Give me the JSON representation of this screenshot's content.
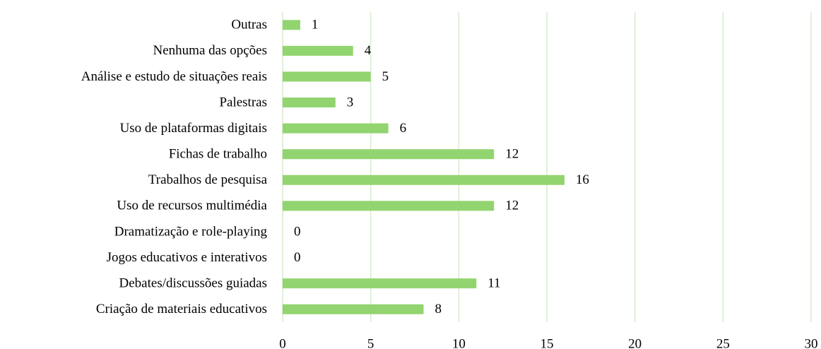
{
  "chart_data": {
    "type": "bar",
    "orientation": "horizontal",
    "categories": [
      "Outras",
      "Nenhuma das opções",
      "Análise e estudo de situações reais",
      "Palestras",
      "Uso de plataformas digitais",
      "Fichas de trabalho",
      "Trabalhos de pesquisa",
      "Uso de recursos multimédia",
      "Dramatização e role-playing",
      "Jogos educativos e interativos",
      "Debates/discussões guiadas",
      "Criação de materiais educativos"
    ],
    "values": [
      1,
      4,
      5,
      3,
      6,
      12,
      16,
      12,
      0,
      0,
      11,
      8
    ],
    "color": "#92d46f",
    "xlim": [
      0,
      30
    ],
    "xticks": [
      0,
      5,
      10,
      15,
      20,
      25,
      30
    ],
    "grid": true,
    "grid_color": "#d8ecce"
  }
}
